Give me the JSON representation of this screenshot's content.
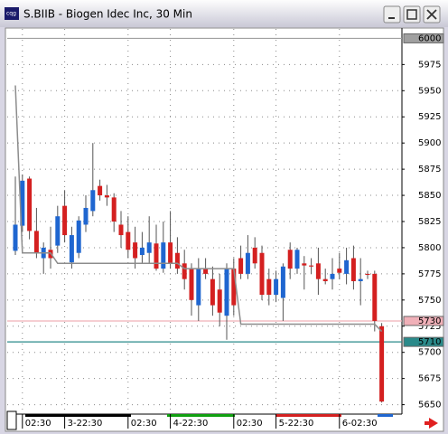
{
  "window_title": "S.BIIB - Biogen Idec Inc, 30 Min",
  "chart_data": {
    "type": "candlestick",
    "title": "S.BIIB - Biogen Idec Inc, 30 Min",
    "up_color": "#1f66d0",
    "down_color": "#d42020",
    "categories": [
      null,
      "02:30",
      null,
      null,
      null,
      null,
      null,
      "3-22:30",
      null,
      null,
      null,
      null,
      null,
      null,
      null,
      null,
      "02:30",
      null,
      null,
      null,
      null,
      null,
      "4-22:30",
      null,
      null,
      null,
      null,
      null,
      null,
      null,
      null,
      "02:30",
      null,
      null,
      null,
      null,
      null,
      "5-22:30",
      null,
      null,
      null,
      null,
      null,
      null,
      null,
      null,
      "6-02:30",
      null,
      null,
      null,
      null,
      null,
      null
    ],
    "open": [
      5797,
      5821,
      5866,
      5816,
      5790,
      5798,
      5802,
      5840,
      5786,
      5795,
      5822,
      5835,
      5859,
      5850,
      5848,
      5822,
      5815,
      5805,
      5793,
      5795,
      5804,
      5780,
      5805,
      5795,
      5785,
      5780,
      5745,
      5780,
      5770,
      5760,
      5735,
      5780,
      5790,
      5775,
      5800,
      5795,
      5770,
      5755,
      5752,
      5798,
      5780,
      5785,
      5783,
      5785,
      5770,
      5770,
      5780,
      5775,
      5790,
      5768,
      5775,
      5775,
      5725
    ],
    "high": [
      5868,
      5870,
      5868,
      5838,
      5805,
      5820,
      5840,
      5855,
      5820,
      5830,
      5850,
      5900,
      5865,
      5860,
      5852,
      5835,
      5830,
      5820,
      5815,
      5830,
      5822,
      5825,
      5835,
      5810,
      5798,
      5785,
      5790,
      5790,
      5782,
      5775,
      5785,
      5790,
      5802,
      5812,
      5810,
      5802,
      5780,
      5778,
      5785,
      5805,
      5800,
      5792,
      5790,
      5800,
      5780,
      5790,
      5795,
      5800,
      5802,
      5790,
      5778,
      5778,
      5728
    ],
    "low": [
      5793,
      5815,
      5808,
      5790,
      5775,
      5780,
      5795,
      5805,
      5780,
      5790,
      5815,
      5830,
      5845,
      5840,
      5815,
      5800,
      5790,
      5780,
      5785,
      5785,
      5778,
      5776,
      5780,
      5775,
      5760,
      5735,
      5730,
      5770,
      5735,
      5725,
      5712,
      5735,
      5770,
      5770,
      5780,
      5750,
      5745,
      5748,
      5730,
      5770,
      5775,
      5760,
      5775,
      5755,
      5765,
      5760,
      5770,
      5765,
      5760,
      5745,
      5770,
      5720,
      5652
    ],
    "close": [
      5822,
      5864,
      5816,
      5795,
      5800,
      5790,
      5830,
      5812,
      5812,
      5826,
      5838,
      5855,
      5850,
      5848,
      5825,
      5812,
      5798,
      5790,
      5800,
      5805,
      5780,
      5805,
      5785,
      5780,
      5770,
      5750,
      5780,
      5775,
      5745,
      5738,
      5780,
      5745,
      5775,
      5795,
      5785,
      5755,
      5755,
      5770,
      5782,
      5780,
      5798,
      5783,
      5782,
      5770,
      5768,
      5775,
      5776,
      5788,
      5768,
      5770,
      5774,
      5730,
      5653
    ],
    "trail": {
      "color": "#8c8c8c",
      "values": [
        5955,
        5795,
        5795,
        5795,
        5795,
        5795,
        5785,
        5785,
        5785,
        5785,
        5785,
        5785,
        5785,
        5785,
        5785,
        5785,
        5785,
        5785,
        5785,
        5785,
        5785,
        5785,
        5785,
        5785,
        5780,
        5780,
        5780,
        5780,
        5780,
        5780,
        5780,
        5780,
        5727,
        5727,
        5727,
        5727,
        5727,
        5727,
        5727,
        5727,
        5727,
        5727,
        5727,
        5727,
        5727,
        5727,
        5727,
        5727,
        5727,
        5727,
        5727,
        5727,
        5720
      ]
    },
    "reference_lines": [
      {
        "value": 6000,
        "color": "#a0a0a0"
      },
      {
        "value": 5730,
        "color": "#f0b0b8"
      },
      {
        "value": 5710,
        "color": "#2a8a8a"
      }
    ],
    "ylim": [
      5641,
      6009
    ],
    "yticks": [
      5650,
      5675,
      5700,
      5725,
      5750,
      5775,
      5800,
      5825,
      5850,
      5875,
      5900,
      5925,
      5950,
      5975
    ],
    "grid": true
  }
}
